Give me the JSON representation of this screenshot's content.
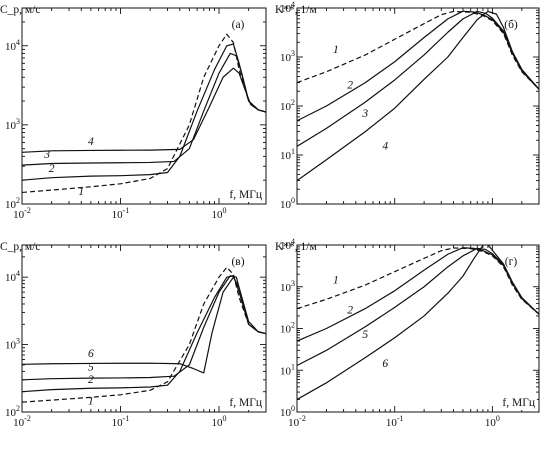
{
  "chart_data": [
    {
      "type": "line",
      "panel": "(а)",
      "ylabel": "C_p, м/с",
      "xlabel": "f, МГц",
      "xscale": "log",
      "yscale": "log",
      "xlim": [
        0.01,
        3
      ],
      "ylim": [
        100,
        30000
      ],
      "x_ticks": [
        "10^-2",
        "10^-1",
        "10^0"
      ],
      "y_ticks": [
        "10^2",
        "10^3",
        "10^4"
      ],
      "series": [
        {
          "name": "1",
          "dash": true,
          "x": [
            0.01,
            0.02,
            0.05,
            0.1,
            0.2,
            0.3,
            0.5,
            0.7,
            1.0,
            1.2,
            1.4,
            1.6,
            2.0,
            2.5,
            3.0
          ],
          "y": [
            140,
            150,
            165,
            180,
            210,
            280,
            1000,
            4000,
            10000,
            14000,
            11000,
            5000,
            2000,
            1550,
            1450
          ]
        },
        {
          "name": "2",
          "dash": false,
          "x": [
            0.01,
            0.02,
            0.05,
            0.1,
            0.2,
            0.3,
            0.4,
            0.6,
            0.9,
            1.2,
            1.4,
            1.6,
            2.0,
            2.5,
            3.0
          ],
          "y": [
            200,
            215,
            225,
            228,
            235,
            250,
            400,
            1500,
            5000,
            10000,
            10500,
            6000,
            2000,
            1550,
            1450
          ]
        },
        {
          "name": "3",
          "dash": false,
          "x": [
            0.01,
            0.02,
            0.05,
            0.1,
            0.2,
            0.35,
            0.5,
            0.7,
            1.0,
            1.3,
            1.5,
            1.7,
            2.0,
            2.5,
            3.0
          ],
          "y": [
            310,
            325,
            330,
            332,
            335,
            345,
            500,
            1500,
            4500,
            8000,
            7500,
            4500,
            2000,
            1550,
            1450
          ]
        },
        {
          "name": "4",
          "dash": false,
          "x": [
            0.01,
            0.02,
            0.05,
            0.1,
            0.2,
            0.4,
            0.55,
            0.8,
            1.1,
            1.4,
            1.6,
            1.8,
            2.1,
            2.5,
            3.0
          ],
          "y": [
            450,
            470,
            475,
            478,
            480,
            490,
            650,
            1700,
            4000,
            5200,
            4500,
            3000,
            1800,
            1550,
            1450
          ]
        }
      ],
      "curve_labels": [
        {
          "text": "4",
          "x": 0.05,
          "y": 560
        },
        {
          "text": "3",
          "x": 0.018,
          "y": 380
        },
        {
          "text": "2",
          "x": 0.02,
          "y": 255
        },
        {
          "text": "1",
          "x": 0.04,
          "y": 130
        }
      ]
    },
    {
      "type": "line",
      "panel": "(б)",
      "ylabel": "K**, 1/м",
      "xlabel": "",
      "xscale": "log",
      "yscale": "log",
      "xlim": [
        0.01,
        3
      ],
      "ylim": [
        1,
        10000
      ],
      "x_ticks": [
        "",
        "",
        ""
      ],
      "y_ticks": [
        "10^0",
        "10^1",
        "10^2",
        "10^3",
        "10^4"
      ],
      "series": [
        {
          "name": "1",
          "dash": true,
          "x": [
            0.01,
            0.02,
            0.05,
            0.1,
            0.2,
            0.3,
            0.4,
            0.6,
            0.8,
            1.0,
            1.3,
            1.6,
            2.0,
            3.0
          ],
          "y": [
            300,
            500,
            1100,
            2300,
            4800,
            7300,
            8500,
            8200,
            7000,
            5500,
            3000,
            1100,
            500,
            220
          ]
        },
        {
          "name": "2",
          "dash": false,
          "x": [
            0.01,
            0.02,
            0.05,
            0.1,
            0.2,
            0.35,
            0.5,
            0.65,
            0.8,
            1.0,
            1.3,
            1.6,
            2.0,
            3.0
          ],
          "y": [
            50,
            100,
            300,
            800,
            2500,
            6000,
            8600,
            8300,
            7300,
            5800,
            3200,
            1200,
            520,
            220
          ]
        },
        {
          "name": "3",
          "dash": false,
          "x": [
            0.01,
            0.02,
            0.05,
            0.1,
            0.2,
            0.35,
            0.5,
            0.7,
            0.85,
            1.0,
            1.3,
            1.6,
            2.0,
            3.0
          ],
          "y": [
            15,
            35,
            120,
            340,
            1100,
            3200,
            6000,
            8500,
            7800,
            6200,
            3400,
            1250,
            530,
            220
          ]
        },
        {
          "name": "4",
          "dash": false,
          "x": [
            0.01,
            0.02,
            0.05,
            0.1,
            0.2,
            0.35,
            0.5,
            0.7,
            0.9,
            1.1,
            1.3,
            1.6,
            2.0,
            3.0
          ],
          "y": [
            3,
            8,
            30,
            90,
            350,
            1000,
            2500,
            5800,
            8500,
            7500,
            4000,
            1300,
            560,
            220
          ]
        }
      ],
      "curve_labels": [
        {
          "text": "1",
          "x": 0.025,
          "y": 1200
        },
        {
          "text": "2",
          "x": 0.035,
          "y": 230
        },
        {
          "text": "3",
          "x": 0.05,
          "y": 60
        },
        {
          "text": "4",
          "x": 0.08,
          "y": 13
        }
      ]
    },
    {
      "type": "line",
      "panel": "(в)",
      "ylabel": "C_p, м/с",
      "xlabel": "f, МГц",
      "xscale": "log",
      "yscale": "log",
      "xlim": [
        0.01,
        3
      ],
      "ylim": [
        100,
        30000
      ],
      "x_ticks": [
        "10^-2",
        "10^-1",
        "10^0"
      ],
      "y_ticks": [
        "10^2",
        "10^3",
        "10^4"
      ],
      "series": [
        {
          "name": "1",
          "dash": true,
          "x": [
            0.01,
            0.02,
            0.05,
            0.1,
            0.2,
            0.3,
            0.5,
            0.7,
            1.0,
            1.2,
            1.4,
            1.6,
            2.0,
            2.5,
            3.0
          ],
          "y": [
            140,
            150,
            165,
            180,
            210,
            280,
            1000,
            4000,
            10000,
            14000,
            11000,
            5000,
            2000,
            1550,
            1450
          ]
        },
        {
          "name": "2",
          "dash": false,
          "x": [
            0.01,
            0.02,
            0.05,
            0.1,
            0.2,
            0.3,
            0.4,
            0.6,
            0.9,
            1.2,
            1.4,
            1.6,
            2.0,
            2.5,
            3.0
          ],
          "y": [
            200,
            215,
            225,
            228,
            235,
            250,
            400,
            1500,
            5000,
            10000,
            10500,
            6000,
            2000,
            1550,
            1450
          ]
        },
        {
          "name": "5",
          "dash": false,
          "x": [
            0.01,
            0.02,
            0.05,
            0.1,
            0.2,
            0.35,
            0.5,
            0.7,
            1.0,
            1.3,
            1.5,
            1.7,
            2.0,
            2.5,
            3.0
          ],
          "y": [
            300,
            312,
            318,
            320,
            325,
            340,
            500,
            1800,
            6000,
            10500,
            10000,
            5000,
            2000,
            1550,
            1450
          ]
        },
        {
          "name": "6",
          "dash": false,
          "x": [
            0.01,
            0.02,
            0.05,
            0.1,
            0.2,
            0.4,
            0.55,
            0.7,
            0.85,
            1.1,
            1.4,
            1.6,
            2.0,
            2.5,
            3.0
          ],
          "y": [
            510,
            520,
            525,
            528,
            530,
            520,
            440,
            380,
            1500,
            6000,
            10000,
            7000,
            2200,
            1550,
            1450
          ]
        }
      ],
      "curve_labels": [
        {
          "text": "6",
          "x": 0.05,
          "y": 650
        },
        {
          "text": "5",
          "x": 0.05,
          "y": 410
        },
        {
          "text": "2",
          "x": 0.05,
          "y": 270
        },
        {
          "text": "1",
          "x": 0.05,
          "y": 130
        }
      ]
    },
    {
      "type": "line",
      "panel": "(г)",
      "ylabel": "K**, 1/м",
      "xlabel": "f, МГц",
      "xscale": "log",
      "yscale": "log",
      "xlim": [
        0.01,
        3
      ],
      "ylim": [
        1,
        10000
      ],
      "x_ticks": [
        "10^-2",
        "10^-1",
        "10^0"
      ],
      "y_ticks": [
        "10^0",
        "10^1",
        "10^2",
        "10^3",
        "10^4"
      ],
      "series": [
        {
          "name": "1",
          "dash": true,
          "x": [
            0.01,
            0.02,
            0.05,
            0.1,
            0.2,
            0.3,
            0.4,
            0.6,
            0.8,
            1.0,
            1.3,
            1.6,
            2.0,
            3.0
          ],
          "y": [
            300,
            500,
            1100,
            2300,
            4800,
            7300,
            8500,
            8200,
            7000,
            5500,
            3000,
            1100,
            500,
            220
          ]
        },
        {
          "name": "2",
          "dash": false,
          "x": [
            0.01,
            0.02,
            0.05,
            0.1,
            0.2,
            0.35,
            0.5,
            0.65,
            0.8,
            1.0,
            1.3,
            1.6,
            2.0,
            3.0
          ],
          "y": [
            50,
            100,
            300,
            800,
            2500,
            6000,
            8600,
            8300,
            7300,
            5800,
            3200,
            1200,
            520,
            220
          ]
        },
        {
          "name": "5",
          "dash": false,
          "x": [
            0.01,
            0.02,
            0.05,
            0.1,
            0.2,
            0.35,
            0.5,
            0.7,
            0.85,
            1.0,
            1.3,
            1.6,
            2.0,
            3.0
          ],
          "y": [
            13,
            30,
            110,
            320,
            1000,
            3000,
            5500,
            8300,
            7800,
            6200,
            3400,
            1250,
            530,
            220
          ]
        },
        {
          "name": "6",
          "dash": false,
          "x": [
            0.01,
            0.02,
            0.05,
            0.1,
            0.2,
            0.35,
            0.5,
            0.65,
            0.78,
            0.85,
            1.0,
            1.3,
            1.6,
            2.0,
            3.0
          ],
          "y": [
            2,
            5,
            20,
            60,
            200,
            700,
            1800,
            4800,
            9000,
            12000,
            7500,
            3500,
            1300,
            550,
            220
          ]
        }
      ],
      "curve_labels": [
        {
          "text": "1",
          "x": 0.025,
          "y": 1200
        },
        {
          "text": "2",
          "x": 0.035,
          "y": 230
        },
        {
          "text": "5",
          "x": 0.05,
          "y": 60
        },
        {
          "text": "6",
          "x": 0.08,
          "y": 12
        }
      ]
    }
  ]
}
